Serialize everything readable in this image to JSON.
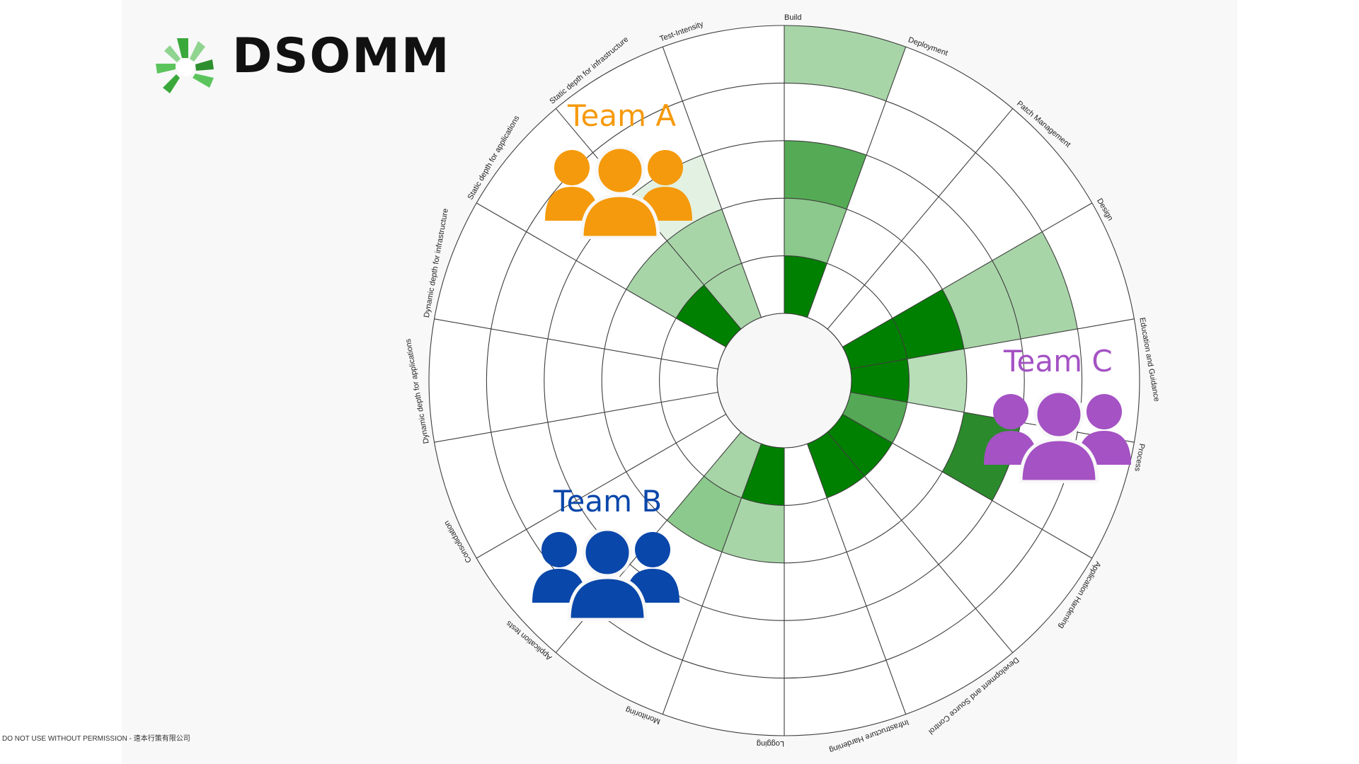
{
  "brand": {
    "name": "DSOMM",
    "logo_colors": [
      "#3aa83a",
      "#5cc45c",
      "#8fd48f",
      "#2e8f2e"
    ]
  },
  "footer": {
    "text": "DO NOT USE WITHOUT PERMISSION - 遠本行策有限公司"
  },
  "chart_data": {
    "type": "polar-bar",
    "levels": 5,
    "grid": true,
    "categories": [
      "Build",
      "Deployment",
      "Patch Management",
      "Design",
      "Education and Guidance",
      "Process",
      "Application Hardening",
      "Development and Source Control",
      "Infrastructure Hardening",
      "Logging",
      "Monitoring",
      "Application tests",
      "Consolidation",
      "Dynamic depth for applications",
      "Dynamic depth for infrastructure",
      "Static depth for applications",
      "Static depth for infrastructure",
      "Test-Intensity"
    ],
    "cells": [
      [
        1,
        "#008000"
      ],
      [
        2,
        "#8cc98c"
      ],
      [
        3,
        "#55ab55"
      ],
      [
        4,
        null
      ],
      [
        5,
        "#a8d5a8"
      ],
      [
        1,
        null
      ],
      [
        2,
        null
      ],
      [
        3,
        null
      ],
      [
        4,
        null
      ],
      [
        5,
        null
      ],
      [
        1,
        null
      ],
      [
        2,
        null
      ],
      [
        3,
        null
      ],
      [
        4,
        null
      ],
      [
        5,
        null
      ],
      [
        1,
        "#008000"
      ],
      [
        2,
        "#008000"
      ],
      [
        3,
        "#a8d5a8"
      ],
      [
        4,
        "#a8d5a8"
      ],
      [
        5,
        null
      ],
      [
        1,
        "#008000"
      ],
      [
        2,
        "#b8deb8"
      ],
      [
        3,
        null
      ],
      [
        4,
        null
      ],
      [
        5,
        null
      ],
      [
        1,
        "#55a855"
      ],
      [
        2,
        null
      ],
      [
        3,
        "#2b8a2b"
      ],
      [
        4,
        null
      ],
      [
        5,
        null
      ],
      [
        1,
        "#008000"
      ],
      [
        2,
        null
      ],
      [
        3,
        null
      ],
      [
        4,
        null
      ],
      [
        5,
        null
      ],
      [
        1,
        "#008000"
      ],
      [
        2,
        null
      ],
      [
        3,
        null
      ],
      [
        4,
        null
      ],
      [
        5,
        null
      ],
      [
        1,
        null
      ],
      [
        2,
        null
      ],
      [
        3,
        null
      ],
      [
        4,
        null
      ],
      [
        5,
        null
      ],
      [
        1,
        "#008000"
      ],
      [
        2,
        "#a8d5a8"
      ],
      [
        3,
        null
      ],
      [
        4,
        null
      ],
      [
        5,
        null
      ],
      [
        1,
        "#a8d5a8"
      ],
      [
        2,
        "#8cc98c"
      ],
      [
        3,
        null
      ],
      [
        4,
        null
      ],
      [
        5,
        null
      ],
      [
        1,
        null
      ],
      [
        2,
        null
      ],
      [
        3,
        null
      ],
      [
        4,
        null
      ],
      [
        5,
        null
      ],
      [
        1,
        null
      ],
      [
        2,
        null
      ],
      [
        3,
        null
      ],
      [
        4,
        null
      ],
      [
        5,
        null
      ],
      [
        1,
        null
      ],
      [
        2,
        null
      ],
      [
        3,
        null
      ],
      [
        4,
        null
      ],
      [
        5,
        null
      ],
      [
        1,
        null
      ],
      [
        2,
        null
      ],
      [
        3,
        null
      ],
      [
        4,
        null
      ],
      [
        5,
        null
      ],
      [
        1,
        "#008000"
      ],
      [
        2,
        "#a8d5a8"
      ],
      [
        3,
        null
      ],
      [
        4,
        null
      ],
      [
        5,
        null
      ],
      [
        1,
        "#a8d5a8"
      ],
      [
        2,
        "#a8d5a8"
      ],
      [
        3,
        "#e3f1e3"
      ],
      [
        4,
        null
      ],
      [
        5,
        null
      ],
      [
        1,
        null
      ],
      [
        2,
        null
      ],
      [
        3,
        null
      ],
      [
        4,
        null
      ],
      [
        5,
        null
      ]
    ]
  },
  "teams": [
    {
      "name": "Team A",
      "color": "#f59a0c"
    },
    {
      "name": "Team B",
      "color": "#0a47aa"
    },
    {
      "name": "Team C",
      "color": "#a452c4"
    }
  ]
}
